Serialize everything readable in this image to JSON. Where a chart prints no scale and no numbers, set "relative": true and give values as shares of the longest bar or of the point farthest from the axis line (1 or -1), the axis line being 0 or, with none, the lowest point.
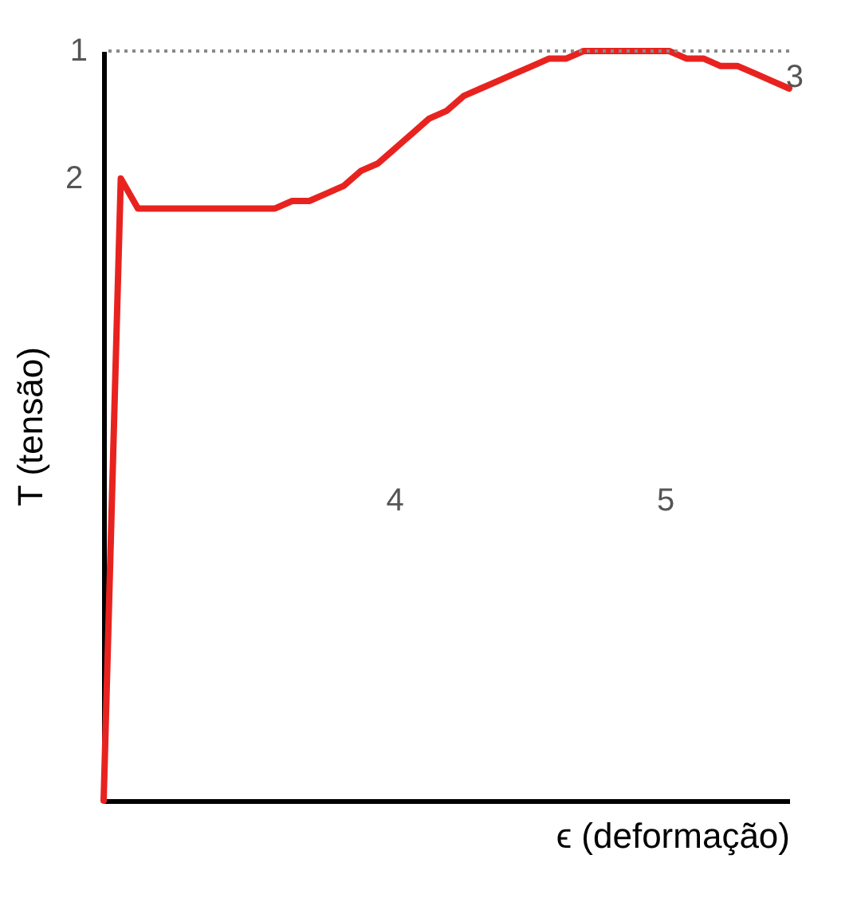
{
  "chart_data": {
    "type": "line",
    "relative": true,
    "xlabel": "ϵ (deformação)",
    "ylabel": "T (tensão)",
    "tick_labels": false,
    "grid": false,
    "legend": false,
    "marker": "none",
    "line_style": "solid",
    "categories": [
      null,
      null,
      null,
      null,
      null,
      null,
      null,
      null,
      null,
      null,
      null,
      null,
      null,
      null,
      null,
      null,
      null,
      null,
      null,
      null,
      null,
      null,
      null,
      null,
      null,
      null,
      null,
      null,
      null,
      null,
      null,
      null,
      null,
      null,
      null,
      null,
      null,
      null,
      null,
      null,
      null
    ],
    "series": [
      {
        "color": "#e8231f",
        "values": [
          0,
          0.83,
          0.79,
          0.79,
          0.79,
          0.79,
          0.79,
          0.79,
          0.79,
          0.79,
          0.79,
          0.8,
          0.8,
          0.81,
          0.82,
          0.84,
          0.85,
          0.87,
          0.89,
          0.91,
          0.92,
          0.94,
          0.95,
          0.96,
          0.97,
          0.98,
          0.99,
          0.99,
          1,
          1,
          1,
          1,
          1,
          1,
          0.99,
          0.99,
          0.98,
          0.98,
          0.97,
          0.96,
          0.95
        ]
      }
    ],
    "ref_lines": [
      {
        "axis": "y",
        "value": 1,
        "label": "1",
        "color": "#888888",
        "line_style": "dotted"
      }
    ],
    "annotations": [
      "2",
      "3",
      "4",
      "5"
    ]
  }
}
